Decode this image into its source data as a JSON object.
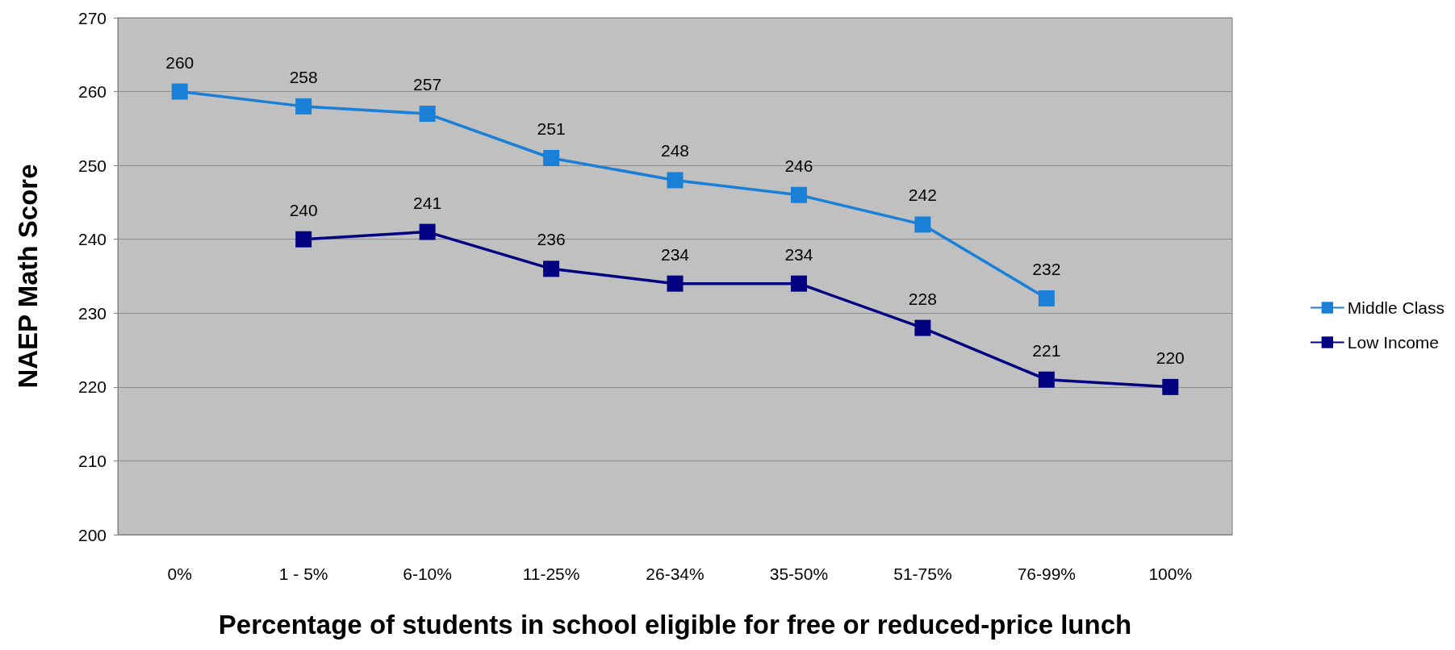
{
  "chart_data": {
    "type": "line",
    "xlabel": "Percentage of students in school eligible for free or reduced-price lunch",
    "ylabel": "NAEP Math Score",
    "categories": [
      "0%",
      "1 - 5%",
      "6-10%",
      "11-25%",
      "26-34%",
      "35-50%",
      "51-75%",
      "76-99%",
      "100%"
    ],
    "series": [
      {
        "name": "Middle Class",
        "color": "#1a7fd6",
        "values": [
          260,
          258,
          257,
          251,
          248,
          246,
          242,
          232,
          null
        ]
      },
      {
        "name": "Low Income",
        "color": "#000080",
        "values": [
          null,
          240,
          241,
          236,
          234,
          234,
          228,
          221,
          220
        ]
      }
    ],
    "ylim": [
      200,
      270
    ],
    "yticks": [
      200,
      210,
      220,
      230,
      240,
      250,
      260,
      270
    ],
    "grid": "y",
    "legend": "right",
    "marker": "square",
    "line_style": "solid",
    "data_labels": true
  }
}
